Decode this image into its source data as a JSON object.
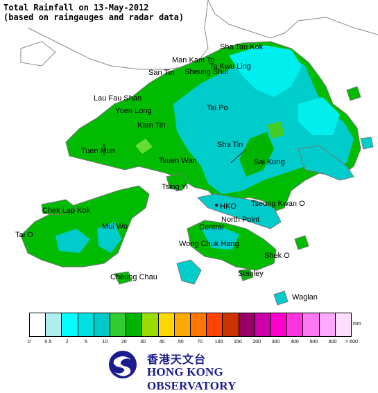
{
  "title": {
    "line1": "Total Rainfall on 13-May-2012",
    "line2": "(based on raingauges and radar data)"
  },
  "colors": {
    "sea": "#ffffff",
    "mainland": "#ffffff",
    "land_outline": "#808080",
    "rain_5_10": "#00e5e5",
    "rain_10_20": "#00cccc",
    "rain_20_30": "#00b800",
    "rain_30_40": "#44cc22"
  },
  "places": [
    {
      "name": "Sha Tau Kok"
    },
    {
      "name": "Man Kam To"
    },
    {
      "name": "Ta Kwu Ling"
    },
    {
      "name": "San Tin"
    },
    {
      "name": "Sheung Shui"
    },
    {
      "name": "Lau Fau Shan"
    },
    {
      "name": "Yuen Long"
    },
    {
      "name": "Tai Po"
    },
    {
      "name": "Kam Tin"
    },
    {
      "name": "Tuen Mun"
    },
    {
      "name": "Sha Tin"
    },
    {
      "name": "Tsuen Wan"
    },
    {
      "name": "Sai Kung"
    },
    {
      "name": "Tsing Yi"
    },
    {
      "name": "Chek Lap Kok"
    },
    {
      "name": "HKO"
    },
    {
      "name": "Tseung Kwan O"
    },
    {
      "name": "Central"
    },
    {
      "name": "North Point"
    },
    {
      "name": "Mui Wo"
    },
    {
      "name": "Tai O"
    },
    {
      "name": "Wong Chuk Hang"
    },
    {
      "name": "Shek O"
    },
    {
      "name": "Cheung Chau"
    },
    {
      "name": "Stanley"
    },
    {
      "name": "Waglan"
    }
  ],
  "legend": {
    "unit": "mm",
    "colors": [
      "#ffffff",
      "#aeeeee",
      "#00ffff",
      "#00e0e0",
      "#00c8c8",
      "#33cc33",
      "#00b400",
      "#99dd00",
      "#ffd700",
      "#ffaa00",
      "#ff7700",
      "#ff4400",
      "#cc3300",
      "#990066",
      "#cc00aa",
      "#ff00cc",
      "#ff33dd",
      "#ff77ee",
      "#ffaaff",
      "#ffddff"
    ],
    "ticks": [
      "0",
      "0.5",
      "2",
      "5",
      "10",
      "20",
      "30",
      "40",
      "50",
      "70",
      "100",
      "150",
      "200",
      "300",
      "400",
      "500",
      "600",
      "> 600"
    ]
  },
  "logo": {
    "chinese": "香港天文台",
    "english": "HONG KONG OBSERVATORY"
  }
}
